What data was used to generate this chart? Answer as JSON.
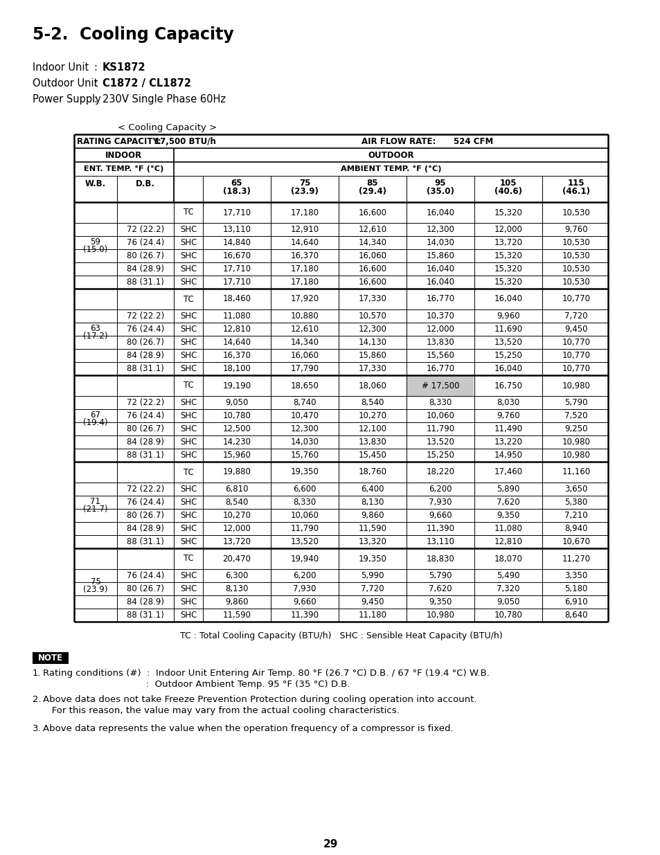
{
  "title": "5-2.  Cooling Capacity",
  "indoor_unit_label": "Indoor Unit",
  "indoor_unit_colon": ":",
  "indoor_unit_value": "KS1872",
  "outdoor_unit_label": "Outdoor Unit",
  "outdoor_unit_colon": ":",
  "outdoor_unit_value": "C1872 / CL1872",
  "power_supply_label": "Power Supply",
  "power_supply_colon": ":",
  "power_supply_value": "230V Single Phase 60Hz",
  "table_caption": "< Cooling Capacity >",
  "rating_capacity_label": "RATING CAPACITY:",
  "rating_capacity_value": "17,500 BTU/h",
  "air_flow_label": "AIR FLOW RATE:",
  "air_flow_value": "524 CFM",
  "indoor_label": "INDOOR",
  "outdoor_label": "OUTDOOR",
  "ent_temp_label": "ENT. TEMP. °F (°C)",
  "amb_temp_label": "AMBIENT TEMP. °F (°C)",
  "wb_label": "W.B.",
  "db_label": "D.B.",
  "temp_top": [
    "65",
    "75",
    "85",
    "95",
    "105",
    "115"
  ],
  "temp_bot": [
    "(18.3)",
    "(23.9)",
    "(29.4)",
    "(35.0)",
    "(40.6)",
    "(46.1)"
  ],
  "table_data": [
    [
      "",
      "",
      "TC",
      "17,710",
      "17,180",
      "16,600",
      "16,040",
      "15,320",
      "10,530"
    ],
    [
      "59",
      "72 (22.2)",
      "SHC",
      "13,110",
      "12,910",
      "12,610",
      "12,300",
      "12,000",
      "9,760"
    ],
    [
      "(15.0)",
      "76 (24.4)",
      "SHC",
      "14,840",
      "14,640",
      "14,340",
      "14,030",
      "13,720",
      "10,530"
    ],
    [
      "",
      "80 (26.7)",
      "SHC",
      "16,670",
      "16,370",
      "16,060",
      "15,860",
      "15,320",
      "10,530"
    ],
    [
      "",
      "84 (28.9)",
      "SHC",
      "17,710",
      "17,180",
      "16,600",
      "16,040",
      "15,320",
      "10,530"
    ],
    [
      "",
      "88 (31.1)",
      "SHC",
      "17,710",
      "17,180",
      "16,600",
      "16,040",
      "15,320",
      "10,530"
    ],
    [
      "",
      "",
      "TC",
      "18,460",
      "17,920",
      "17,330",
      "16,770",
      "16,040",
      "10,770"
    ],
    [
      "63",
      "72 (22.2)",
      "SHC",
      "11,080",
      "10,880",
      "10,570",
      "10,370",
      "9,960",
      "7,720"
    ],
    [
      "(17.2)",
      "76 (24.4)",
      "SHC",
      "12,810",
      "12,610",
      "12,300",
      "12,000",
      "11,690",
      "9,450"
    ],
    [
      "",
      "80 (26.7)",
      "SHC",
      "14,640",
      "14,340",
      "14,130",
      "13,830",
      "13,520",
      "10,770"
    ],
    [
      "",
      "84 (28.9)",
      "SHC",
      "16,370",
      "16,060",
      "15,860",
      "15,560",
      "15,250",
      "10,770"
    ],
    [
      "",
      "88 (31.1)",
      "SHC",
      "18,100",
      "17,790",
      "17,330",
      "16,770",
      "16,040",
      "10,770"
    ],
    [
      "",
      "",
      "TC",
      "19,190",
      "18,650",
      "18,060",
      "# 17,500",
      "16,750",
      "10,980"
    ],
    [
      "67",
      "72 (22.2)",
      "SHC",
      "9,050",
      "8,740",
      "8,540",
      "8,330",
      "8,030",
      "5,790"
    ],
    [
      "(19.4)",
      "76 (24.4)",
      "SHC",
      "10,780",
      "10,470",
      "10,270",
      "10,060",
      "9,760",
      "7,520"
    ],
    [
      "",
      "80 (26.7)",
      "SHC",
      "12,500",
      "12,300",
      "12,100",
      "11,790",
      "11,490",
      "9,250"
    ],
    [
      "",
      "84 (28.9)",
      "SHC",
      "14,230",
      "14,030",
      "13,830",
      "13,520",
      "13,220",
      "10,980"
    ],
    [
      "",
      "88 (31.1)",
      "SHC",
      "15,960",
      "15,760",
      "15,450",
      "15,250",
      "14,950",
      "10,980"
    ],
    [
      "",
      "",
      "TC",
      "19,880",
      "19,350",
      "18,760",
      "18,220",
      "17,460",
      "11,160"
    ],
    [
      "71",
      "72 (22.2)",
      "SHC",
      "6,810",
      "6,600",
      "6,400",
      "6,200",
      "5,890",
      "3,650"
    ],
    [
      "(21.7)",
      "76 (24.4)",
      "SHC",
      "8,540",
      "8,330",
      "8,130",
      "7,930",
      "7,620",
      "5,380"
    ],
    [
      "",
      "80 (26.7)",
      "SHC",
      "10,270",
      "10,060",
      "9,860",
      "9,660",
      "9,350",
      "7,210"
    ],
    [
      "",
      "84 (28.9)",
      "SHC",
      "12,000",
      "11,790",
      "11,590",
      "11,390",
      "11,080",
      "8,940"
    ],
    [
      "",
      "88 (31.1)",
      "SHC",
      "13,720",
      "13,520",
      "13,320",
      "13,110",
      "12,810",
      "10,670"
    ],
    [
      "",
      "",
      "TC",
      "20,470",
      "19,940",
      "19,350",
      "18,830",
      "18,070",
      "11,270"
    ],
    [
      "75",
      "76 (24.4)",
      "SHC",
      "6,300",
      "6,200",
      "5,990",
      "5,790",
      "5,490",
      "3,350"
    ],
    [
      "(23.9)",
      "80 (26.7)",
      "SHC",
      "8,130",
      "7,930",
      "7,720",
      "7,620",
      "7,320",
      "5,180"
    ],
    [
      "",
      "84 (28.9)",
      "SHC",
      "9,860",
      "9,660",
      "9,450",
      "9,350",
      "9,050",
      "6,910"
    ],
    [
      "",
      "88 (31.1)",
      "SHC",
      "11,590",
      "11,390",
      "11,180",
      "10,980",
      "10,780",
      "8,640"
    ]
  ],
  "group_info": [
    {
      "wb1": "59",
      "wb2": "(15.0)",
      "start": 0,
      "end": 5
    },
    {
      "wb1": "63",
      "wb2": "(17.2)",
      "start": 6,
      "end": 11
    },
    {
      "wb1": "67",
      "wb2": "(19.4)",
      "start": 12,
      "end": 17
    },
    {
      "wb1": "71",
      "wb2": "(21.7)",
      "start": 18,
      "end": 23
    },
    {
      "wb1": "75",
      "wb2": "(23.9)",
      "start": 24,
      "end": 28
    }
  ],
  "highlight_row": 12,
  "highlight_col": 6,
  "footnote": "TC : Total Cooling Capacity (BTU/h)   SHC : Sensible Heat Capacity (BTU/h)",
  "note1": "Rating conditions (#)  :  Indoor Unit Entering Air Temp. 80 °F (26.7 °C) D.B. / 67 °F (19.4 °C) W.B.",
  "note1b": "                                   :  Outdoor Ambient Temp. 95 °F (35 °C) D.B.",
  "note2": "Above data does not take Freeze Prevention Protection during cooling operation into account.",
  "note2b": "   For this reason, the value may vary from the actual cooling characteristics.",
  "note3": "Above data represents the value when the operation frequency of a compressor is fixed.",
  "page_number": "29"
}
